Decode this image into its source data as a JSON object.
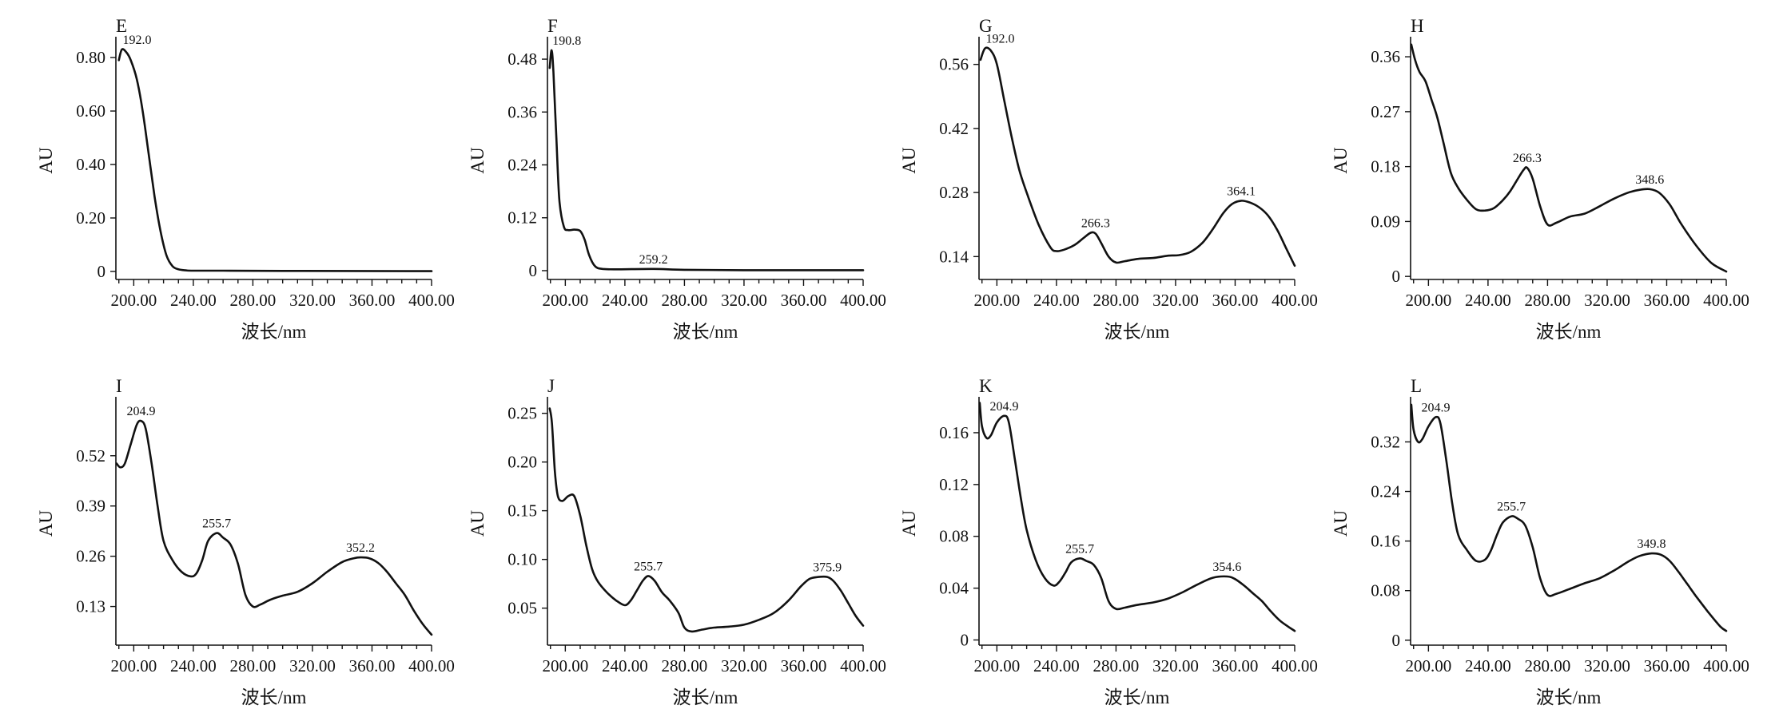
{
  "chart_data": [
    {
      "type": "line",
      "panel": "E",
      "xlabel": "波长/nm",
      "ylabel": "AU",
      "xlim": [
        188,
        400
      ],
      "ylim": [
        -0.03,
        0.86
      ],
      "xticks": [
        200,
        240,
        280,
        320,
        360,
        400
      ],
      "xtick_labels": [
        "200.00",
        "240.00",
        "280.00",
        "320.00",
        "360.00",
        "400.00"
      ],
      "yticks": [
        0,
        0.2,
        0.4,
        0.6,
        0.8
      ],
      "ytick_labels": [
        "0",
        "0.20",
        "0.40",
        "0.60",
        "0.80"
      ],
      "series": [
        {
          "name": "E",
          "x": [
            190,
            192,
            195,
            198,
            202,
            206,
            210,
            214,
            218,
            222,
            226,
            230,
            235,
            240,
            260,
            300,
            400
          ],
          "y": [
            0.79,
            0.83,
            0.82,
            0.79,
            0.72,
            0.6,
            0.44,
            0.28,
            0.15,
            0.06,
            0.02,
            0.008,
            0.004,
            0.003,
            0.003,
            0.002,
            0.001
          ]
        }
      ],
      "peaks": [
        {
          "x": 192.0,
          "y": 0.83,
          "label": "192.0"
        }
      ]
    },
    {
      "type": "line",
      "panel": "F",
      "xlabel": "波长/nm",
      "ylabel": "AU",
      "xlim": [
        188,
        400
      ],
      "ylim": [
        -0.02,
        0.52
      ],
      "xticks": [
        200,
        240,
        280,
        320,
        360,
        400
      ],
      "xtick_labels": [
        "200.00",
        "240.00",
        "280.00",
        "320.00",
        "360.00",
        "400.00"
      ],
      "yticks": [
        0,
        0.12,
        0.24,
        0.36,
        0.48
      ],
      "ytick_labels": [
        "0",
        "0.12",
        "0.24",
        "0.36",
        "0.48"
      ],
      "series": [
        {
          "name": "F",
          "x": [
            189.5,
            190.8,
            192,
            194,
            196,
            199,
            202,
            206,
            210,
            213,
            216,
            220,
            225,
            235,
            259.2,
            280,
            320,
            400
          ],
          "y": [
            0.46,
            0.5,
            0.45,
            0.3,
            0.16,
            0.1,
            0.092,
            0.093,
            0.09,
            0.07,
            0.035,
            0.01,
            0.004,
            0.003,
            0.004,
            0.002,
            0.001,
            0.001
          ]
        }
      ],
      "peaks": [
        {
          "x": 190.8,
          "y": 0.5,
          "label": "190.8"
        },
        {
          "x": 259.2,
          "y": 0.004,
          "label": "259.2"
        }
      ]
    },
    {
      "type": "line",
      "panel": "G",
      "xlabel": "波长/nm",
      "ylabel": "AU",
      "xlim": [
        188,
        400
      ],
      "ylim": [
        0.09,
        0.61
      ],
      "xticks": [
        200,
        240,
        280,
        320,
        360,
        400
      ],
      "xtick_labels": [
        "200.00",
        "240.00",
        "280.00",
        "320.00",
        "360.00",
        "400.00"
      ],
      "yticks": [
        0.14,
        0.28,
        0.42,
        0.56
      ],
      "ytick_labels": [
        "0.14",
        "0.28",
        "0.42",
        "0.56"
      ],
      "series": [
        {
          "name": "G",
          "x": [
            189,
            192,
            196,
            200,
            205,
            210,
            215,
            220,
            228,
            236,
            240,
            245,
            252,
            258,
            263,
            266.3,
            270,
            275,
            280,
            286,
            295,
            305,
            315,
            322,
            330,
            338,
            345,
            352,
            358,
            364.1,
            370,
            376,
            382,
            388,
            394,
            400
          ],
          "y": [
            0.57,
            0.595,
            0.59,
            0.56,
            0.48,
            0.4,
            0.33,
            0.28,
            0.21,
            0.16,
            0.152,
            0.155,
            0.165,
            0.18,
            0.192,
            0.19,
            0.17,
            0.14,
            0.127,
            0.13,
            0.135,
            0.137,
            0.142,
            0.143,
            0.15,
            0.17,
            0.2,
            0.235,
            0.255,
            0.262,
            0.258,
            0.248,
            0.23,
            0.2,
            0.16,
            0.12
          ]
        }
      ],
      "peaks": [
        {
          "x": 192.0,
          "y": 0.595,
          "label": "192.0"
        },
        {
          "x": 266.3,
          "y": 0.192,
          "label": "266.3"
        },
        {
          "x": 364.1,
          "y": 0.262,
          "label": "364.1"
        }
      ]
    },
    {
      "type": "line",
      "panel": "H",
      "xlabel": "波长/nm",
      "ylabel": "AU",
      "xlim": [
        188,
        400
      ],
      "ylim": [
        -0.005,
        0.385
      ],
      "xticks": [
        200,
        240,
        280,
        320,
        360,
        400
      ],
      "xtick_labels": [
        "200.00",
        "240.00",
        "280.00",
        "320.00",
        "360.00",
        "400.00"
      ],
      "yticks": [
        0,
        0.09,
        0.18,
        0.27,
        0.36
      ],
      "ytick_labels": [
        "0",
        "0.09",
        "0.18",
        "0.27",
        "0.36"
      ],
      "series": [
        {
          "name": "H",
          "x": [
            188.5,
            191,
            194,
            198,
            202,
            206,
            210,
            215,
            220,
            226,
            232,
            238,
            244,
            250,
            255,
            260,
            264,
            266.3,
            270,
            275,
            280,
            286,
            295,
            305,
            315,
            325,
            335,
            342,
            348.6,
            355,
            362,
            370,
            380,
            390,
            400
          ],
          "y": [
            0.38,
            0.355,
            0.335,
            0.32,
            0.29,
            0.26,
            0.22,
            0.17,
            0.145,
            0.125,
            0.11,
            0.108,
            0.112,
            0.125,
            0.14,
            0.16,
            0.175,
            0.178,
            0.16,
            0.115,
            0.085,
            0.088,
            0.098,
            0.103,
            0.115,
            0.128,
            0.138,
            0.142,
            0.143,
            0.137,
            0.118,
            0.085,
            0.05,
            0.022,
            0.008
          ]
        }
      ],
      "peaks": [
        {
          "x": 266.3,
          "y": 0.178,
          "label": "266.3"
        },
        {
          "x": 348.6,
          "y": 0.143,
          "label": "348.6"
        }
      ]
    },
    {
      "type": "line",
      "panel": "I",
      "xlabel": "波长/nm",
      "ylabel": "AU",
      "xlim": [
        188,
        400
      ],
      "ylim": [
        0.03,
        0.66
      ],
      "xticks": [
        200,
        240,
        280,
        320,
        360,
        400
      ],
      "xtick_labels": [
        "200.00",
        "240.00",
        "280.00",
        "320.00",
        "360.00",
        "400.00"
      ],
      "yticks": [
        0.13,
        0.26,
        0.39,
        0.52
      ],
      "ytick_labels": [
        "0.13",
        "0.26",
        "0.39",
        "0.52"
      ],
      "series": [
        {
          "name": "I",
          "x": [
            188.5,
            191,
            194,
            198,
            202,
            204.9,
            208,
            212,
            216,
            220,
            226,
            232,
            238,
            242,
            246,
            250,
            255.7,
            260,
            265,
            270,
            275,
            280,
            285,
            292,
            300,
            310,
            320,
            330,
            340,
            348,
            352.2,
            358,
            364,
            370,
            376,
            382,
            388,
            394,
            400
          ],
          "y": [
            0.5,
            0.49,
            0.5,
            0.55,
            0.6,
            0.61,
            0.59,
            0.5,
            0.39,
            0.3,
            0.25,
            0.22,
            0.208,
            0.215,
            0.25,
            0.3,
            0.32,
            0.308,
            0.29,
            0.24,
            0.16,
            0.13,
            0.135,
            0.148,
            0.158,
            0.168,
            0.19,
            0.22,
            0.245,
            0.255,
            0.257,
            0.255,
            0.243,
            0.22,
            0.19,
            0.16,
            0.12,
            0.085,
            0.057
          ]
        }
      ],
      "peaks": [
        {
          "x": 204.9,
          "y": 0.61,
          "label": "204.9"
        },
        {
          "x": 255.7,
          "y": 0.32,
          "label": "255.7"
        },
        {
          "x": 352.2,
          "y": 0.257,
          "label": "352.2"
        }
      ]
    },
    {
      "type": "line",
      "panel": "J",
      "xlabel": "波长/nm",
      "ylabel": "AU",
      "xlim": [
        188,
        400
      ],
      "ylim": [
        0.012,
        0.262
      ],
      "xticks": [
        200,
        240,
        280,
        320,
        360,
        400
      ],
      "xtick_labels": [
        "200.00",
        "240.00",
        "280.00",
        "320.00",
        "360.00",
        "400.00"
      ],
      "yticks": [
        0.05,
        0.1,
        0.15,
        0.2,
        0.25
      ],
      "ytick_labels": [
        "0.05",
        "0.10",
        "0.15",
        "0.20",
        "0.25"
      ],
      "series": [
        {
          "name": "J",
          "x": [
            189.5,
            191,
            193,
            195,
            198,
            202,
            206,
            210,
            214,
            218,
            222,
            228,
            234,
            240,
            244,
            248,
            252,
            255.7,
            260,
            265,
            270,
            276,
            280,
            285,
            292,
            300,
            310,
            320,
            330,
            340,
            350,
            358,
            364,
            370,
            375.9,
            380,
            385,
            390,
            395,
            400
          ],
          "y": [
            0.255,
            0.24,
            0.19,
            0.165,
            0.16,
            0.165,
            0.165,
            0.145,
            0.115,
            0.09,
            0.077,
            0.066,
            0.058,
            0.053,
            0.058,
            0.068,
            0.078,
            0.083,
            0.078,
            0.066,
            0.058,
            0.045,
            0.03,
            0.026,
            0.028,
            0.03,
            0.031,
            0.033,
            0.038,
            0.045,
            0.058,
            0.072,
            0.08,
            0.082,
            0.082,
            0.078,
            0.068,
            0.055,
            0.042,
            0.032
          ]
        }
      ],
      "peaks": [
        {
          "x": 255.7,
          "y": 0.083,
          "label": "255.7"
        },
        {
          "x": 375.9,
          "y": 0.082,
          "label": "375.9"
        }
      ]
    },
    {
      "type": "line",
      "panel": "K",
      "xlabel": "波长/nm",
      "ylabel": "AU",
      "xlim": [
        188,
        400
      ],
      "ylim": [
        -0.004,
        0.184
      ],
      "xticks": [
        200,
        240,
        280,
        320,
        360,
        400
      ],
      "xtick_labels": [
        "200.00",
        "240.00",
        "280.00",
        "320.00",
        "360.00",
        "400.00"
      ],
      "yticks": [
        0,
        0.04,
        0.08,
        0.12,
        0.16
      ],
      "ytick_labels": [
        "0",
        "0.04",
        "0.08",
        "0.12",
        "0.16"
      ],
      "series": [
        {
          "name": "K",
          "x": [
            188.5,
            190,
            193,
            196,
            200,
            204.9,
            208,
            212,
            216,
            220,
            226,
            232,
            238,
            242,
            246,
            250,
            255.7,
            260,
            265,
            270,
            275,
            280,
            286,
            294,
            305,
            315,
            325,
            335,
            345,
            354.6,
            360,
            366,
            372,
            378,
            384,
            390,
            396,
            400
          ],
          "y": [
            0.183,
            0.165,
            0.156,
            0.158,
            0.168,
            0.173,
            0.168,
            0.14,
            0.11,
            0.085,
            0.062,
            0.048,
            0.042,
            0.045,
            0.052,
            0.06,
            0.063,
            0.061,
            0.058,
            0.048,
            0.03,
            0.024,
            0.025,
            0.027,
            0.029,
            0.032,
            0.037,
            0.043,
            0.048,
            0.049,
            0.047,
            0.042,
            0.036,
            0.03,
            0.022,
            0.015,
            0.01,
            0.007
          ]
        }
      ],
      "peaks": [
        {
          "x": 204.9,
          "y": 0.173,
          "label": "204.9"
        },
        {
          "x": 255.7,
          "y": 0.063,
          "label": "255.7"
        },
        {
          "x": 354.6,
          "y": 0.049,
          "label": "354.6"
        }
      ]
    },
    {
      "type": "line",
      "panel": "L",
      "xlabel": "波长/nm",
      "ylabel": "AU",
      "xlim": [
        188,
        400
      ],
      "ylim": [
        -0.008,
        0.385
      ],
      "xticks": [
        200,
        240,
        280,
        320,
        360,
        400
      ],
      "xtick_labels": [
        "200.00",
        "240.00",
        "280.00",
        "320.00",
        "360.00",
        "400.00"
      ],
      "yticks": [
        0,
        0.08,
        0.16,
        0.24,
        0.32
      ],
      "ytick_labels": [
        "0",
        "0.08",
        "0.16",
        "0.24",
        "0.32"
      ],
      "series": [
        {
          "name": "L",
          "x": [
            188.5,
            190,
            193,
            196,
            200,
            204.9,
            208,
            212,
            216,
            220,
            226,
            232,
            238,
            242,
            246,
            250,
            255.7,
            260,
            265,
            270,
            275,
            280,
            286,
            294,
            305,
            315,
            325,
            335,
            342,
            349.8,
            356,
            362,
            368,
            374,
            380,
            388,
            396,
            400
          ],
          "y": [
            0.38,
            0.34,
            0.32,
            0.325,
            0.345,
            0.36,
            0.35,
            0.29,
            0.22,
            0.17,
            0.145,
            0.128,
            0.13,
            0.145,
            0.17,
            0.19,
            0.2,
            0.196,
            0.185,
            0.15,
            0.1,
            0.073,
            0.075,
            0.082,
            0.092,
            0.1,
            0.113,
            0.128,
            0.136,
            0.14,
            0.138,
            0.128,
            0.11,
            0.09,
            0.07,
            0.045,
            0.022,
            0.015
          ]
        }
      ],
      "peaks": [
        {
          "x": 204.9,
          "y": 0.36,
          "label": "204.9"
        },
        {
          "x": 255.7,
          "y": 0.2,
          "label": "255.7"
        },
        {
          "x": 349.8,
          "y": 0.14,
          "label": "349.8"
        }
      ]
    }
  ]
}
